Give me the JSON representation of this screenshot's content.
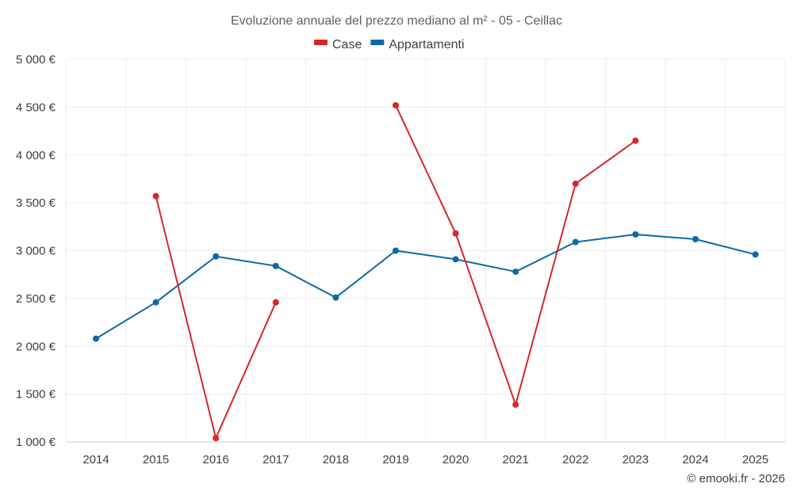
{
  "chart_data": {
    "type": "line",
    "title": "Evoluzione annuale del prezzo mediano al m² - 05 - Ceillac",
    "xlabel": "",
    "ylabel": "",
    "categories": [
      "2014",
      "2015",
      "2016",
      "2017",
      "2018",
      "2019",
      "2020",
      "2021",
      "2022",
      "2023",
      "2024",
      "2025"
    ],
    "ylim": [
      1000,
      5000
    ],
    "y_ticks": [
      1000,
      1500,
      2000,
      2500,
      3000,
      3500,
      4000,
      4500,
      5000
    ],
    "y_tick_labels": [
      "1 000 €",
      "1 500 €",
      "2 000 €",
      "2 500 €",
      "3 000 €",
      "3 500 €",
      "4 000 €",
      "4 500 €",
      "5 000 €"
    ],
    "grid": true,
    "legend_position": "top-center",
    "series": [
      {
        "name": "Case",
        "color": "#d62728",
        "values": [
          null,
          3570,
          1040,
          2460,
          null,
          4520,
          3180,
          1390,
          3700,
          4150,
          null,
          null
        ]
      },
      {
        "name": "Appartamenti",
        "color": "#0d6aa3",
        "values": [
          2080,
          2460,
          2940,
          2840,
          2510,
          3000,
          2910,
          2780,
          3090,
          3170,
          3120,
          2960
        ]
      }
    ]
  },
  "credit": "© emooki.fr - 2026"
}
